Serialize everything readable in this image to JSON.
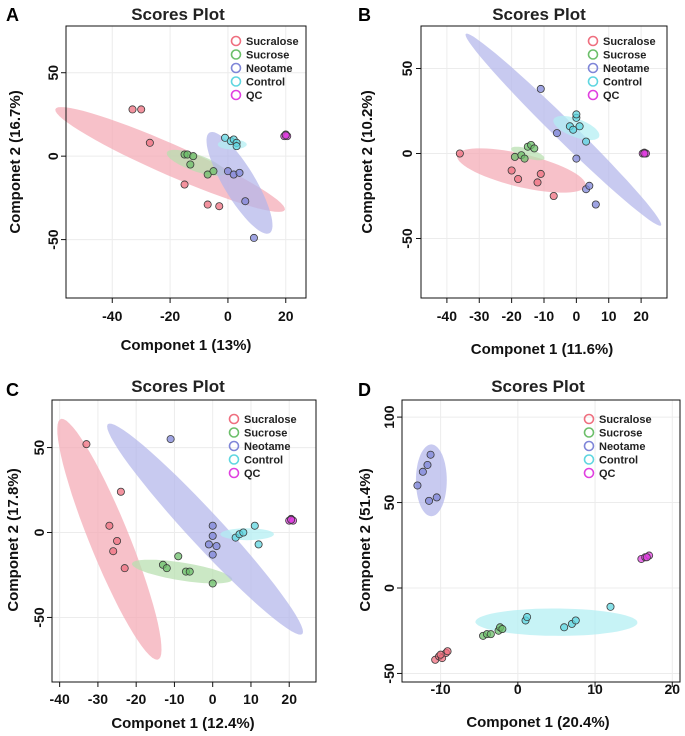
{
  "figure": {
    "series_colors": {
      "Sucralose": "#ef6f7f",
      "Sucrose": "#6cbf6a",
      "Neotame": "#7f86d8",
      "Control": "#5fd6e0",
      "QC": "#e040e0"
    },
    "ellipse_colors": {
      "Sucralose": "#f4a9b4",
      "Sucrose": "#b7dfae",
      "Neotame": "#b3b6ea",
      "Control": "#b2eef2"
    }
  },
  "chart_data": [
    {
      "panel": "A",
      "type": "scatter",
      "title": "Scores Plot",
      "xlabel": "Componet 1 (13%)",
      "ylabel": "Componet 2 (16.7%)",
      "xlim": [
        -56,
        27
      ],
      "ylim": [
        -85,
        78
      ],
      "xticks": [
        -40,
        -20,
        0,
        20
      ],
      "yticks": [
        -50,
        0,
        50
      ],
      "legend": [
        "Sucralose",
        "Sucrose",
        "Neotame",
        "Control",
        "QC"
      ],
      "ellipses": [
        {
          "series": "Sucralose",
          "cx": -20,
          "cy": -2,
          "rx": 50,
          "ry": 8,
          "angle": -38
        },
        {
          "series": "Sucrose",
          "cx": -11,
          "cy": -4,
          "rx": 12,
          "ry": 4.5,
          "angle": -35
        },
        {
          "series": "Neotame",
          "cx": 4,
          "cy": -16,
          "rx": 32,
          "ry": 6,
          "angle": -72
        },
        {
          "series": "Control",
          "cx": 1.5,
          "cy": 7,
          "rx": 5,
          "ry": 3,
          "angle": 0
        }
      ],
      "series": [
        {
          "name": "Sucralose",
          "points": [
            [
              -33,
              28
            ],
            [
              -30,
              28
            ],
            [
              -27,
              8
            ],
            [
              -15,
              -17
            ],
            [
              -7,
              -29
            ],
            [
              -3,
              -30
            ]
          ]
        },
        {
          "name": "Sucrose",
          "points": [
            [
              -15,
              1
            ],
            [
              -14,
              1
            ],
            [
              -12,
              0
            ],
            [
              -13,
              -5
            ],
            [
              -7,
              -11
            ],
            [
              -5,
              -9
            ]
          ]
        },
        {
          "name": "Neotame",
          "points": [
            [
              0,
              -9
            ],
            [
              2,
              -11
            ],
            [
              4,
              -10
            ],
            [
              6,
              -27
            ],
            [
              9,
              -49
            ]
          ]
        },
        {
          "name": "Control",
          "points": [
            [
              -1,
              11
            ],
            [
              1,
              9
            ],
            [
              2,
              10
            ],
            [
              3,
              8
            ],
            [
              3,
              6
            ]
          ]
        },
        {
          "name": "QC",
          "points": [
            [
              19.5,
              12
            ],
            [
              20,
              13
            ],
            [
              20.5,
              12
            ],
            [
              20,
              12.5
            ]
          ]
        }
      ]
    },
    {
      "panel": "B",
      "type": "scatter",
      "title": "Scores Plot",
      "xlabel": "Componet 1 (11.6%)",
      "ylabel": "Componet 2 (10.2%)",
      "xlim": [
        -48,
        28
      ],
      "ylim": [
        -85,
        75
      ],
      "xticks": [
        -40,
        -30,
        -20,
        -10,
        0,
        10,
        20
      ],
      "yticks": [
        -50,
        0,
        50
      ],
      "legend": [
        "Sucralose",
        "Sucrose",
        "Neotame",
        "Control",
        "QC"
      ],
      "ellipses": [
        {
          "series": "Sucralose",
          "cx": -17,
          "cy": -10,
          "rx": 22,
          "ry": 9,
          "angle": -28
        },
        {
          "series": "Sucrose",
          "cx": -15,
          "cy": 0,
          "rx": 6,
          "ry": 2.5,
          "angle": -35
        },
        {
          "series": "Neotame",
          "cx": -4,
          "cy": 14,
          "rx": 64,
          "ry": 4,
          "angle": -62
        },
        {
          "series": "Control",
          "cx": 0,
          "cy": 15,
          "rx": 9,
          "ry": 4.5,
          "angle": -45
        }
      ],
      "series": [
        {
          "name": "Sucralose",
          "points": [
            [
              -36,
              0
            ],
            [
              -20,
              -10
            ],
            [
              -18,
              -15
            ],
            [
              -12,
              -17
            ],
            [
              -11,
              -12
            ],
            [
              -7,
              -25
            ]
          ]
        },
        {
          "name": "Sucrose",
          "points": [
            [
              -19,
              -2
            ],
            [
              -17,
              -1
            ],
            [
              -16,
              -3
            ],
            [
              -15,
              4
            ],
            [
              -14,
              5
            ],
            [
              -13,
              3
            ]
          ]
        },
        {
          "name": "Neotame",
          "points": [
            [
              -11,
              38
            ],
            [
              -6,
              12
            ],
            [
              0,
              -3
            ],
            [
              3,
              -21
            ],
            [
              4,
              -19
            ],
            [
              6,
              -30
            ]
          ]
        },
        {
          "name": "Control",
          "points": [
            [
              -2,
              16
            ],
            [
              -1,
              14
            ],
            [
              0,
              21
            ],
            [
              0,
              23
            ],
            [
              1,
              16
            ],
            [
              3,
              7
            ]
          ]
        },
        {
          "name": "QC",
          "points": [
            [
              20.5,
              0
            ],
            [
              21,
              0.5
            ],
            [
              21.5,
              0
            ],
            [
              21,
              0
            ]
          ]
        }
      ]
    },
    {
      "panel": "C",
      "type": "scatter",
      "title": "Scores Plot",
      "xlabel": "Componet 1 (12.4%)",
      "ylabel": "Componet 2 (17.8%)",
      "xlim": [
        -42,
        27
      ],
      "ylim": [
        -88,
        78
      ],
      "xticks": [
        -40,
        -30,
        -20,
        -10,
        0,
        10,
        20
      ],
      "yticks": [
        -50,
        0,
        50
      ],
      "legend": [
        "Sucralose",
        "Sucrose",
        "Neotame",
        "Control",
        "QC"
      ],
      "ellipses": [
        {
          "series": "Sucralose",
          "cx": -27,
          "cy": -4,
          "rx": 72,
          "ry": 5.5,
          "angle": -80
        },
        {
          "series": "Sucrose",
          "cx": -8,
          "cy": -23,
          "rx": 14,
          "ry": 5,
          "angle": -22
        },
        {
          "series": "Neotame",
          "cx": -2,
          "cy": 2,
          "rx": 67,
          "ry": 5.5,
          "angle": -68
        },
        {
          "series": "Control",
          "cx": 9,
          "cy": -1,
          "rx": 7,
          "ry": 3.5,
          "angle": 0
        }
      ],
      "series": [
        {
          "name": "Sucralose",
          "points": [
            [
              -33,
              52
            ],
            [
              -24,
              24
            ],
            [
              -27,
              4
            ],
            [
              -25,
              -5
            ],
            [
              -26,
              -11
            ],
            [
              -23,
              -21
            ]
          ]
        },
        {
          "name": "Sucrose",
          "points": [
            [
              -13,
              -19
            ],
            [
              -12,
              -21
            ],
            [
              -9,
              -14
            ],
            [
              -7,
              -23
            ],
            [
              -6,
              -23
            ],
            [
              0,
              -30
            ]
          ]
        },
        {
          "name": "Neotame",
          "points": [
            [
              -11,
              55
            ],
            [
              0,
              4
            ],
            [
              0,
              -2
            ],
            [
              -1,
              -7
            ],
            [
              0,
              -13
            ],
            [
              1,
              -8
            ]
          ]
        },
        {
          "name": "Control",
          "points": [
            [
              6,
              -3
            ],
            [
              7,
              -1
            ],
            [
              8,
              0
            ],
            [
              11,
              4
            ],
            [
              12,
              -7
            ]
          ]
        },
        {
          "name": "QC",
          "points": [
            [
              20,
              7
            ],
            [
              20.5,
              8
            ],
            [
              21,
              7
            ],
            [
              20.5,
              7.5
            ]
          ]
        }
      ]
    },
    {
      "panel": "D",
      "type": "scatter",
      "title": "Scores Plot",
      "xlabel": "Componet 1 (20.4%)",
      "ylabel": "Componet 2 (51.4%)",
      "xlim": [
        -15,
        21
      ],
      "ylim": [
        -55,
        110
      ],
      "xticks": [
        -10,
        0,
        10,
        20
      ],
      "yticks": [
        -50,
        0,
        50,
        100
      ],
      "legend": [
        "Sucralose",
        "Sucrose",
        "Neotame",
        "Control",
        "QC"
      ],
      "ellipses": [
        {
          "series": "Neotame",
          "cx": -11.2,
          "cy": 63,
          "rx": 2,
          "ry": 21,
          "angle": 0
        },
        {
          "series": "Control",
          "cx": 5,
          "cy": -20,
          "rx": 10.5,
          "ry": 8,
          "angle": -3
        }
      ],
      "series": [
        {
          "name": "Sucralose",
          "points": [
            [
              -10.7,
              -42
            ],
            [
              -10.2,
              -40
            ],
            [
              -9.8,
              -41
            ],
            [
              -9.3,
              -38
            ],
            [
              -9.1,
              -37
            ],
            [
              -10,
              -39
            ]
          ]
        },
        {
          "name": "Sucrose",
          "points": [
            [
              -4.5,
              -28
            ],
            [
              -4,
              -27
            ],
            [
              -3.5,
              -27
            ],
            [
              -2.5,
              -25
            ],
            [
              -2.3,
              -23
            ],
            [
              -2,
              -24
            ]
          ]
        },
        {
          "name": "Neotame",
          "points": [
            [
              -13,
              60
            ],
            [
              -12.3,
              68
            ],
            [
              -11.7,
              72
            ],
            [
              -11.3,
              78
            ],
            [
              -11.5,
              51
            ],
            [
              -10.5,
              53
            ]
          ]
        },
        {
          "name": "Control",
          "points": [
            [
              1,
              -19
            ],
            [
              1.2,
              -17
            ],
            [
              6,
              -23
            ],
            [
              7,
              -21
            ],
            [
              7.5,
              -19
            ],
            [
              12,
              -11
            ]
          ]
        },
        {
          "name": "QC",
          "points": [
            [
              16,
              17
            ],
            [
              16.5,
              18
            ],
            [
              17,
              19
            ],
            [
              16.7,
              18
            ]
          ]
        }
      ]
    }
  ]
}
